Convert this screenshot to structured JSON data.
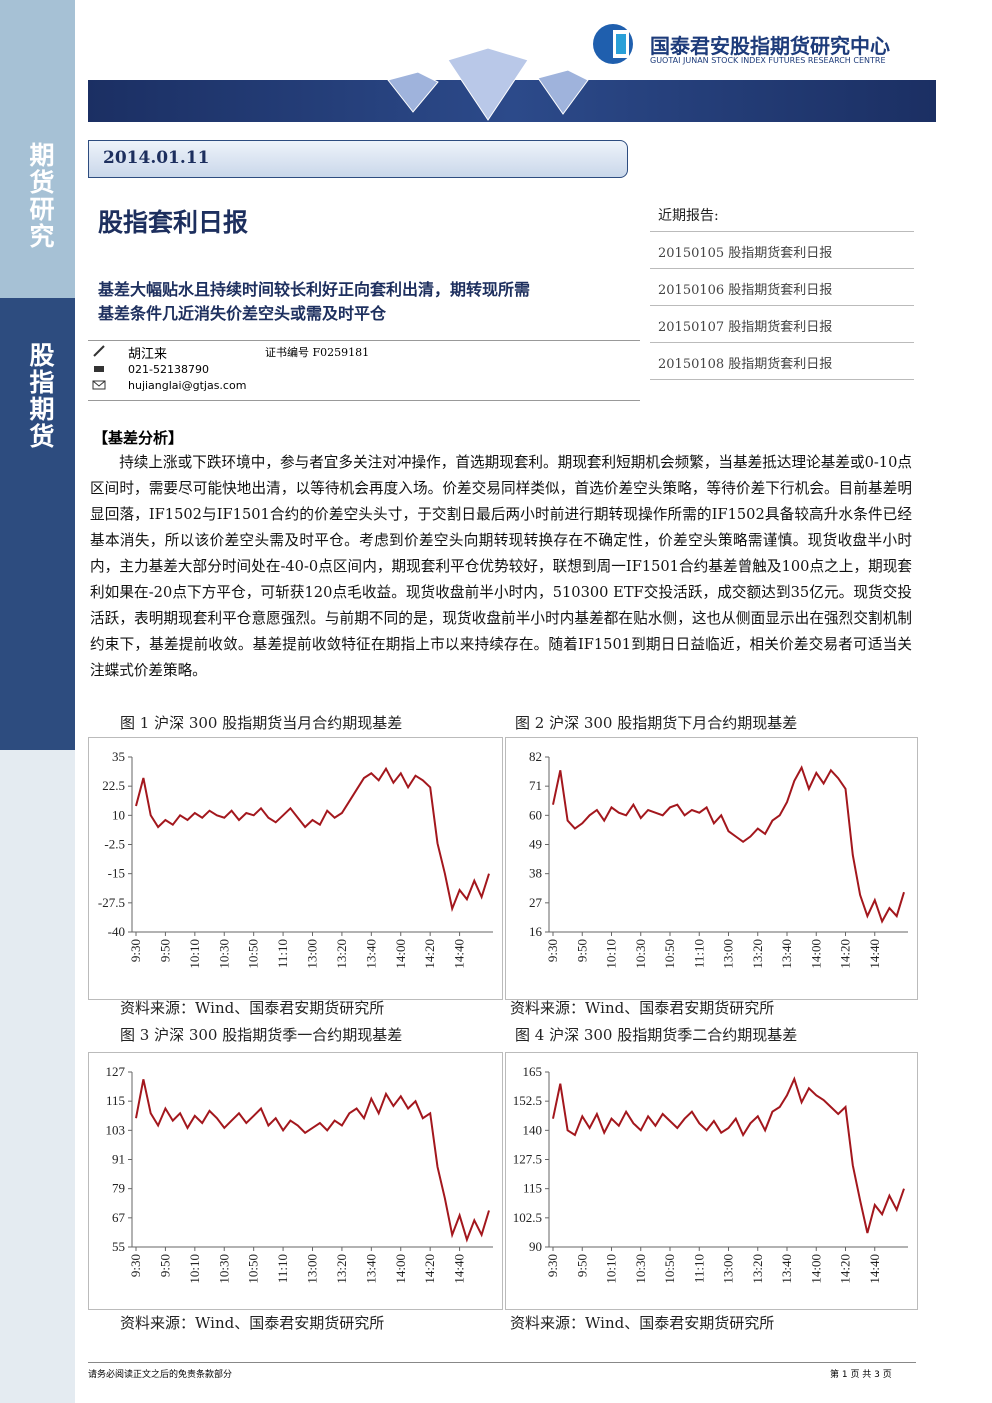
{
  "header": {
    "org": "国泰君安股指期货研究中心",
    "org_en": "GUOTAI JUNAN STOCK INDEX FUTURES RESEARCH CENTRE"
  },
  "sidebar": {
    "top": "期货研究",
    "bottom": "股指期货"
  },
  "date": "2014.01.11",
  "title": "股指套利日报",
  "subtitle": [
    "基差大幅贴水且持续时间较长利好正向套利出清，期转现所需",
    "基差条件几近消失价差空头或需及时平仓"
  ],
  "author": {
    "name": "胡江来",
    "cert": "证书编号 F0259181",
    "phone": "021-52138790",
    "email": "hujianglai@gtjas.com"
  },
  "recent": {
    "heading": "近期报告:",
    "items": [
      "20150105 股指期货套利日报",
      "20150106 股指期货套利日报",
      "20150107 股指期货套利日报",
      "20150108 股指期货套利日报"
    ]
  },
  "section": "【基差分析】",
  "body": "持续上涨或下跌环境中，参与者宜多关注对冲操作，首选期现套利。期现套利短期机会频繁，当基差抵达理论基差或0-10点区间时，需要尽可能快地出清，以等待机会再度入场。价差交易同样类似，首选价差空头策略，等待价差下行机会。目前基差明显回落，IF1502与IF1501合约的价差空头头寸，于交割日最后两小时前进行期转现操作所需的IF1502具备较高升水条件已经基本消失，所以该价差空头需及时平仓。考虑到价差空头向期转现转换存在不确定性，价差空头策略需谨慎。现货收盘半小时内，主力基差大部分时间处在-40-0点区间内，期现套利平仓优势较好，联想到周一IF1501合约基差曾触及100点之上，期现套利如果在-20点下方平仓，可斩获120点毛收益。现货收盘前半小时内，510300 ETF交投活跃，成交额达到35亿元。现货交投活跃，表明期现套利平仓意愿强烈。与前期不同的是，现货收盘前半小时内基差都在贴水侧，这也从侧面显示出在强烈交割机制约束下，基差提前收敛。基差提前收敛特征在期指上市以来持续存在。随着IF1501到期日日益临近，相关价差交易者可适当关注蝶式价差策略。",
  "chart_data": [
    {
      "type": "line",
      "title": "图 1 沪深 300 股指期货当月合约期现基差",
      "source": "资料来源：Wind、国泰君安期货研究所",
      "color": "#a3171d",
      "categories": [
        "9:30",
        null,
        null,
        null,
        "9:50",
        null,
        null,
        null,
        "10:10",
        null,
        null,
        null,
        "10:30",
        null,
        null,
        null,
        "10:50",
        null,
        null,
        null,
        "11:10",
        null,
        null,
        null,
        "13:00",
        null,
        null,
        null,
        "13:20",
        null,
        null,
        null,
        "13:40",
        null,
        null,
        null,
        "14:00",
        null,
        null,
        null,
        "14:20",
        null,
        null,
        null,
        "14:40",
        null,
        null,
        null,
        null
      ],
      "values": [
        14,
        26,
        10,
        5,
        8,
        6,
        10,
        8,
        11,
        9,
        12,
        10,
        9,
        12,
        8,
        11,
        10,
        13,
        9,
        7,
        10,
        13,
        9,
        5,
        8,
        6,
        12,
        9,
        11,
        16,
        21,
        26,
        28,
        25,
        30,
        24,
        28,
        22,
        27,
        25,
        22,
        -2,
        -15,
        -30,
        -22,
        -26,
        -18,
        -25,
        -15
      ],
      "ylim": [
        -40,
        35
      ],
      "yticks": [
        35,
        22.5,
        10,
        -2.5,
        -15,
        -27.5,
        -40
      ]
    },
    {
      "type": "line",
      "title": "图 2 沪深 300 股指期货下月合约期现基差",
      "source": "资料来源：Wind、国泰君安期货研究所",
      "color": "#a3171d",
      "categories": [
        "9:30",
        null,
        null,
        null,
        "9:50",
        null,
        null,
        null,
        "10:10",
        null,
        null,
        null,
        "10:30",
        null,
        null,
        null,
        "10:50",
        null,
        null,
        null,
        "11:10",
        null,
        null,
        null,
        "13:00",
        null,
        null,
        null,
        "13:20",
        null,
        null,
        null,
        "13:40",
        null,
        null,
        null,
        "14:00",
        null,
        null,
        null,
        "14:20",
        null,
        null,
        null,
        "14:40",
        null,
        null,
        null,
        null
      ],
      "values": [
        64,
        77,
        58,
        55,
        57,
        60,
        62,
        58,
        63,
        61,
        60,
        64,
        59,
        62,
        61,
        60,
        63,
        64,
        60,
        62,
        61,
        63,
        57,
        60,
        54,
        52,
        50,
        52,
        55,
        53,
        58,
        60,
        65,
        73,
        78,
        70,
        76,
        72,
        77,
        74,
        70,
        45,
        30,
        22,
        28,
        20,
        25,
        22,
        31
      ],
      "ylim": [
        16,
        82
      ],
      "yticks": [
        82,
        71,
        60,
        49,
        38,
        27,
        16
      ]
    },
    {
      "type": "line",
      "title": "图 3 沪深 300 股指期货季一合约期现基差",
      "source": "资料来源：Wind、国泰君安期货研究所",
      "color": "#a3171d",
      "categories": [
        "9:30",
        null,
        null,
        null,
        "9:50",
        null,
        null,
        null,
        "10:10",
        null,
        null,
        null,
        "10:30",
        null,
        null,
        null,
        "10:50",
        null,
        null,
        null,
        "11:10",
        null,
        null,
        null,
        "13:00",
        null,
        null,
        null,
        "13:20",
        null,
        null,
        null,
        "13:40",
        null,
        null,
        null,
        "14:00",
        null,
        null,
        null,
        "14:20",
        null,
        null,
        null,
        "14:40",
        null,
        null,
        null,
        null
      ],
      "values": [
        108,
        124,
        110,
        105,
        112,
        107,
        110,
        104,
        109,
        106,
        111,
        108,
        104,
        107,
        110,
        106,
        109,
        112,
        105,
        108,
        103,
        107,
        105,
        102,
        104,
        106,
        103,
        107,
        105,
        110,
        112,
        108,
        116,
        110,
        118,
        113,
        117,
        112,
        115,
        108,
        110,
        88,
        75,
        60,
        68,
        58,
        66,
        60,
        70
      ],
      "ylim": [
        55,
        127
      ],
      "yticks": [
        127,
        115,
        103,
        91,
        79,
        67,
        55
      ]
    },
    {
      "type": "line",
      "title": "图 4 沪深 300 股指期货季二合约期现基差",
      "source": "资料来源：Wind、国泰君安期货研究所",
      "color": "#a3171d",
      "categories": [
        "9:30",
        null,
        null,
        null,
        "9:50",
        null,
        null,
        null,
        "10:10",
        null,
        null,
        null,
        "10:30",
        null,
        null,
        null,
        "10:50",
        null,
        null,
        null,
        "11:10",
        null,
        null,
        null,
        "13:00",
        null,
        null,
        null,
        "13:20",
        null,
        null,
        null,
        "13:40",
        null,
        null,
        null,
        "14:00",
        null,
        null,
        null,
        "14:20",
        null,
        null,
        null,
        "14:40",
        null,
        null,
        null,
        null
      ],
      "values": [
        145,
        160,
        140,
        138,
        146,
        141,
        147,
        139,
        145,
        142,
        148,
        143,
        140,
        146,
        142,
        147,
        144,
        141,
        145,
        148,
        143,
        140,
        144,
        139,
        141,
        145,
        138,
        143,
        146,
        140,
        148,
        150,
        155,
        162,
        152,
        158,
        155,
        153,
        150,
        147,
        150,
        125,
        110,
        96,
        108,
        104,
        112,
        106,
        115
      ],
      "ylim": [
        90,
        165
      ],
      "yticks": [
        165,
        152.5,
        140,
        127.5,
        115,
        102.5,
        90
      ]
    }
  ],
  "footer": {
    "disclaimer": "请务必阅读正文之后的免责条款部分",
    "page": "第 1 页 共 3 页"
  }
}
